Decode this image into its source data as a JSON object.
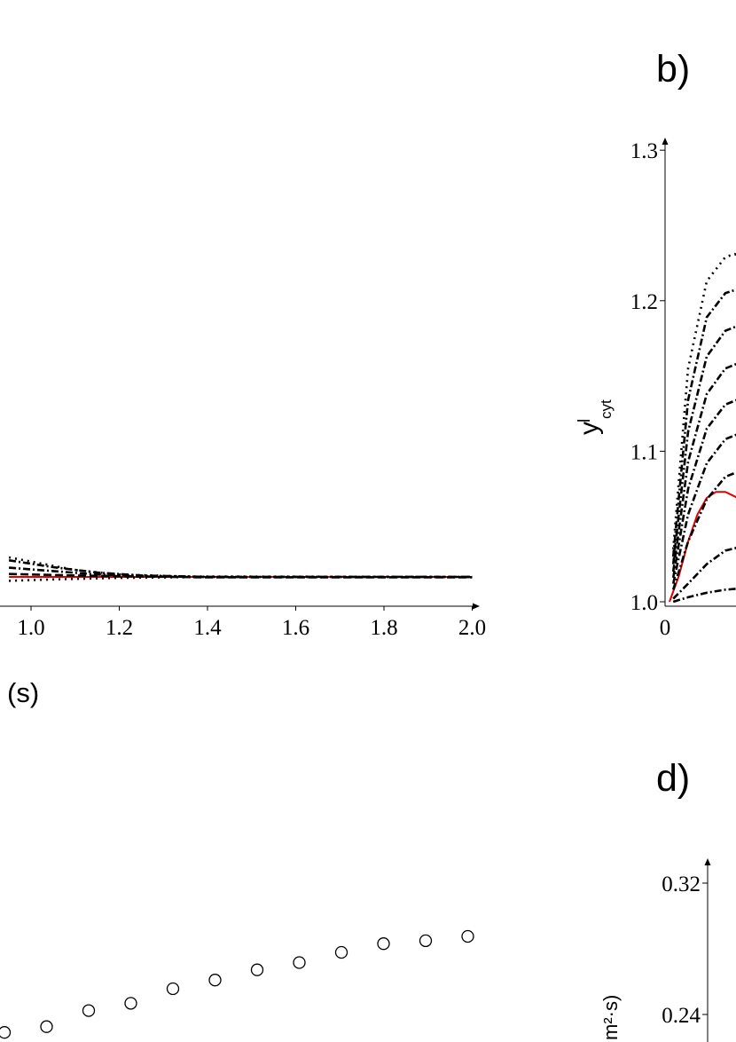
{
  "panel_labels": {
    "b": "b)",
    "d": "d)"
  },
  "chart_data": [
    {
      "type": "line",
      "xlabel_fragment": "(s)",
      "xlim": [
        0.0,
        2.0
      ],
      "x_ticks": [
        "1.0",
        "1.2",
        "1.4",
        "1.6",
        "1.8",
        "2.0"
      ],
      "x_tick_values": [
        1.0,
        1.2,
        1.4,
        1.6,
        1.8,
        2.0
      ],
      "series": [
        {
          "style": "solid",
          "color": "#e00000",
          "x": [
            0.95,
            1.2,
            1.4,
            1.6,
            1.8,
            2.0
          ],
          "values": [
            1.0,
            1.0,
            1.0,
            1.0,
            1.0,
            1.0
          ]
        },
        {
          "style": "dashdot",
          "color": "#000000",
          "x": [
            0.95,
            1.05,
            1.15,
            1.25,
            1.4,
            2.0
          ],
          "values": [
            1.019,
            1.012,
            1.005,
            1.002,
            1.0,
            1.0
          ]
        },
        {
          "style": "dashdot",
          "color": "#000000",
          "x": [
            0.95,
            1.05,
            1.15,
            1.25,
            1.4,
            2.0
          ],
          "values": [
            1.034,
            1.02,
            1.009,
            1.003,
            1.0,
            1.0
          ]
        },
        {
          "style": "dotted",
          "color": "#000000",
          "x": [
            0.95,
            1.02,
            1.1,
            1.2,
            1.35,
            2.0
          ],
          "values": [
            1.04,
            1.028,
            1.014,
            1.005,
            1.001,
            1.0
          ]
        },
        {
          "style": "dotted",
          "color": "#000000",
          "x": [
            0.95,
            1.05,
            1.2,
            1.4,
            2.0
          ],
          "values": [
            0.992,
            0.995,
            0.998,
            1.0,
            1.0
          ]
        },
        {
          "style": "dashed",
          "color": "#000000",
          "x": [
            0.95,
            1.1,
            1.25,
            1.4,
            2.0
          ],
          "values": [
            1.006,
            1.003,
            1.001,
            0.999,
            0.999
          ]
        }
      ]
    },
    {
      "type": "line",
      "y_axis_label": "y",
      "y_axis_label_sup": "l",
      "y_axis_label_sub": "cyt",
      "ylim": [
        1.0,
        1.3
      ],
      "y_ticks": [
        "1.0",
        "1.1",
        "1.2",
        "1.3"
      ],
      "y_tick_values": [
        1.0,
        1.1,
        1.2,
        1.3
      ],
      "x_ticks": [
        "0"
      ],
      "series": [
        {
          "style": "solid",
          "color": "#e00000",
          "x": [
            0,
            0.05,
            0.1,
            0.15,
            0.2,
            0.25,
            0.3,
            0.35,
            0.4,
            0.43
          ],
          "values": [
            1.0,
            1.017,
            1.04,
            1.058,
            1.069,
            1.073,
            1.073,
            1.07,
            1.066,
            1.062
          ]
        },
        {
          "style": "dashdot",
          "color": "#000000",
          "x": [
            0.02,
            0.1,
            0.2,
            0.3,
            0.4,
            0.43
          ],
          "values": [
            1.0,
            1.003,
            1.006,
            1.008,
            1.009,
            1.009
          ]
        },
        {
          "style": "dashdot",
          "color": "#000000",
          "x": [
            0.02,
            0.1,
            0.2,
            0.3,
            0.4,
            0.43
          ],
          "values": [
            1.002,
            1.012,
            1.025,
            1.034,
            1.037,
            1.036
          ]
        },
        {
          "style": "dashdot",
          "color": "#000000",
          "x": [
            0.02,
            0.1,
            0.2,
            0.3,
            0.4,
            0.43
          ],
          "values": [
            1.008,
            1.04,
            1.068,
            1.083,
            1.088,
            1.088
          ]
        },
        {
          "style": "dashdot",
          "color": "#000000",
          "x": [
            0.02,
            0.1,
            0.2,
            0.3,
            0.4,
            0.43
          ],
          "values": [
            1.012,
            1.058,
            1.092,
            1.108,
            1.113,
            1.113
          ]
        },
        {
          "style": "dashdot",
          "color": "#000000",
          "x": [
            0.02,
            0.1,
            0.2,
            0.3,
            0.4,
            0.43
          ],
          "values": [
            1.016,
            1.075,
            1.115,
            1.131,
            1.136,
            1.135
          ]
        },
        {
          "style": "dashdot",
          "color": "#000000",
          "x": [
            0.02,
            0.1,
            0.2,
            0.3,
            0.4,
            0.43
          ],
          "values": [
            1.02,
            1.093,
            1.138,
            1.155,
            1.16,
            1.158
          ]
        },
        {
          "style": "dashdot",
          "color": "#000000",
          "x": [
            0.02,
            0.1,
            0.2,
            0.3,
            0.4,
            0.43
          ],
          "values": [
            1.025,
            1.113,
            1.163,
            1.18,
            1.185,
            1.183
          ]
        },
        {
          "style": "dashdot",
          "color": "#000000",
          "x": [
            0.02,
            0.1,
            0.2,
            0.3,
            0.4,
            0.43
          ],
          "values": [
            1.03,
            1.134,
            1.189,
            1.205,
            1.209,
            1.207
          ]
        },
        {
          "style": "dotted",
          "color": "#000000",
          "x": [
            0.02,
            0.1,
            0.2,
            0.3,
            0.35,
            0.4,
            0.43
          ],
          "values": [
            1.035,
            1.155,
            1.213,
            1.229,
            1.231,
            1.228,
            1.222
          ]
        }
      ]
    },
    {
      "type": "scatter",
      "marker": "open-circle",
      "x": [
        0,
        1,
        2,
        3,
        4,
        5,
        6,
        7,
        8,
        9,
        10,
        11
      ],
      "values": [
        0.192,
        0.196,
        0.207,
        0.212,
        0.222,
        0.228,
        0.235,
        0.24,
        0.247,
        0.253,
        0.255,
        0.258
      ]
    },
    {
      "type": "scatter",
      "ylim": [
        0.16,
        0.32
      ],
      "y_ticks": [
        "0.24",
        "0.32"
      ],
      "y_tick_values": [
        0.24,
        0.32
      ],
      "y_axis_label_fragment": "m²·s)"
    }
  ]
}
